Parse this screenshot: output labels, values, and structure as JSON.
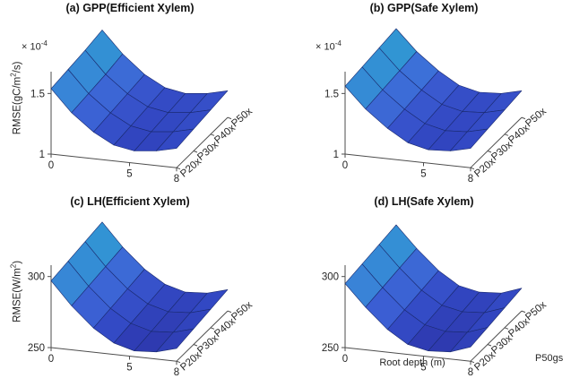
{
  "figure": {
    "xlabel": "Root depth (m)",
    "corner_label": "P50gs",
    "colormap": [
      "#2b2fa0",
      "#3247c2",
      "#3b5cd2",
      "#3d78da",
      "#2f9ad2",
      "#1db9c6"
    ],
    "axis_color": "#4d4d4d",
    "edge_color": "#1a2a70"
  },
  "chart_data": [
    {
      "id": "a",
      "type": "surface",
      "title": "(a) GPP(Efficient Xylem)",
      "zlabel_pre": "RMSE(gC/m",
      "zlabel_sup": "2",
      "zlabel_post": "/s)",
      "z_scale_base": "× 10",
      "z_scale_exp": "-4",
      "x": [
        0,
        1.3,
        2.7,
        4,
        5.3,
        6.7,
        8
      ],
      "x_tick_values": [
        0,
        5,
        8
      ],
      "x_tick_labels": [
        "0",
        "5",
        "8"
      ],
      "y_categories": [
        "P20x",
        "P30x",
        "P40x",
        "P50x"
      ],
      "z_ticks": [
        1,
        1.5
      ],
      "z_tick_labels": [
        "1",
        "1.5"
      ],
      "zlim": [
        1,
        1.68
      ],
      "values": [
        [
          1.54,
          1.36,
          1.22,
          1.13,
          1.1,
          1.12,
          1.16
        ],
        [
          1.56,
          1.38,
          1.24,
          1.15,
          1.12,
          1.14,
          1.18
        ],
        [
          1.58,
          1.4,
          1.26,
          1.17,
          1.14,
          1.16,
          1.2
        ],
        [
          1.61,
          1.43,
          1.28,
          1.19,
          1.16,
          1.18,
          1.22
        ]
      ]
    },
    {
      "id": "b",
      "type": "surface",
      "title": "(b) GPP(Safe Xylem)",
      "z_scale_base": "× 10",
      "z_scale_exp": "-4",
      "x": [
        0,
        1.3,
        2.7,
        4,
        5.3,
        6.7,
        8
      ],
      "x_tick_values": [
        0,
        5,
        8
      ],
      "x_tick_labels": [
        "0",
        "5",
        "8"
      ],
      "y_categories": [
        "P20x",
        "P30x",
        "P40x",
        "P50x"
      ],
      "z_ticks": [
        1,
        1.5
      ],
      "z_tick_labels": [
        "1",
        "1.5"
      ],
      "zlim": [
        1,
        1.68
      ],
      "values": [
        [
          1.56,
          1.39,
          1.25,
          1.15,
          1.11,
          1.12,
          1.16
        ],
        [
          1.58,
          1.41,
          1.27,
          1.17,
          1.13,
          1.14,
          1.18
        ],
        [
          1.6,
          1.43,
          1.29,
          1.19,
          1.15,
          1.16,
          1.2
        ],
        [
          1.62,
          1.45,
          1.31,
          1.21,
          1.17,
          1.18,
          1.22
        ]
      ]
    },
    {
      "id": "c",
      "type": "surface",
      "title": "(c) LH(Efficient Xylem)",
      "zlabel_pre": "RMSE(W/m",
      "zlabel_sup": "2",
      "zlabel_post": ")",
      "x": [
        0,
        1.3,
        2.7,
        4,
        5.3,
        6.7,
        8
      ],
      "x_tick_values": [
        0,
        5,
        8
      ],
      "x_tick_labels": [
        "0",
        "5",
        "8"
      ],
      "y_categories": [
        "P20x",
        "P30x",
        "P40x",
        "P50x"
      ],
      "z_ticks": [
        250,
        300
      ],
      "z_tick_labels": [
        "250",
        "300"
      ],
      "zlim": [
        250,
        308
      ],
      "values": [
        [
          297,
          281,
          267,
          258,
          254,
          255,
          259
        ],
        [
          299,
          283,
          269,
          260,
          256,
          257,
          261
        ],
        [
          301,
          285,
          271,
          262,
          258,
          259,
          263
        ],
        [
          303,
          287,
          273,
          264,
          260,
          261,
          265
        ]
      ]
    },
    {
      "id": "d",
      "type": "surface",
      "title": "(d) LH(Safe Xylem)",
      "x": [
        0,
        1.3,
        2.7,
        4,
        5.3,
        6.7,
        8
      ],
      "x_tick_values": [
        0,
        5,
        8
      ],
      "x_tick_labels": [
        "0",
        "5",
        "8"
      ],
      "y_categories": [
        "P20x",
        "P30x",
        "P40x",
        "P50x"
      ],
      "z_ticks": [
        250,
        300
      ],
      "z_tick_labels": [
        "250",
        "300"
      ],
      "zlim": [
        250,
        308
      ],
      "values": [
        [
          295,
          280,
          266,
          257,
          254,
          255,
          260
        ],
        [
          297,
          282,
          268,
          259,
          256,
          257,
          262
        ],
        [
          299,
          284,
          270,
          261,
          258,
          259,
          264
        ],
        [
          301,
          286,
          272,
          263,
          260,
          261,
          266
        ]
      ]
    }
  ]
}
